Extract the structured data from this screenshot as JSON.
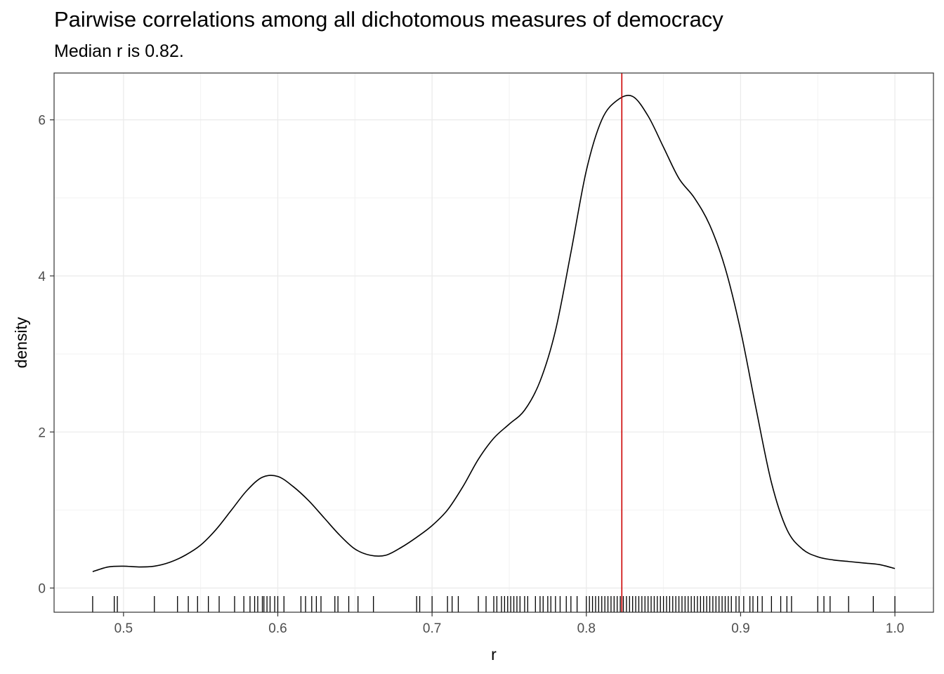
{
  "chart_data": {
    "type": "area",
    "title": "Pairwise correlations among all dichotomous measures of democracy",
    "subtitle": "Median r is 0.82.",
    "xlabel": "r",
    "ylabel": "density",
    "xlim": [
      0.455,
      1.025
    ],
    "ylim": [
      -0.31,
      6.6
    ],
    "x_ticks": [
      0.5,
      0.6,
      0.7,
      0.8,
      0.9,
      1.0
    ],
    "x_tick_labels": [
      "0.5",
      "0.6",
      "0.7",
      "0.8",
      "0.9",
      "1.0"
    ],
    "y_ticks": [
      0,
      2,
      4,
      6
    ],
    "y_tick_labels": [
      "0",
      "2",
      "4",
      "6"
    ],
    "grid": true,
    "legend": "none",
    "median_r": 0.823,
    "median_line_color": "#cc0000",
    "curve_color": "#000000",
    "series": [
      {
        "x": [
          0.48,
          0.49,
          0.5,
          0.51,
          0.52,
          0.53,
          0.54,
          0.55,
          0.56,
          0.57,
          0.58,
          0.59,
          0.6,
          0.61,
          0.62,
          0.63,
          0.64,
          0.65,
          0.66,
          0.67,
          0.68,
          0.69,
          0.7,
          0.71,
          0.72,
          0.73,
          0.74,
          0.75,
          0.76,
          0.77,
          0.78,
          0.79,
          0.8,
          0.81,
          0.82,
          0.83,
          0.84,
          0.85,
          0.86,
          0.87,
          0.88,
          0.89,
          0.9,
          0.91,
          0.92,
          0.93,
          0.94,
          0.95,
          0.96,
          0.97,
          0.98,
          0.99,
          1.0
        ],
        "y": [
          0.21,
          0.27,
          0.28,
          0.27,
          0.28,
          0.33,
          0.42,
          0.55,
          0.75,
          1.0,
          1.25,
          1.42,
          1.43,
          1.3,
          1.12,
          0.9,
          0.68,
          0.5,
          0.42,
          0.42,
          0.52,
          0.65,
          0.8,
          1.0,
          1.3,
          1.65,
          1.92,
          2.1,
          2.28,
          2.65,
          3.3,
          4.3,
          5.35,
          6.0,
          6.25,
          6.3,
          6.05,
          5.65,
          5.25,
          5.0,
          4.65,
          4.1,
          3.3,
          2.3,
          1.35,
          0.75,
          0.5,
          0.4,
          0.36,
          0.34,
          0.32,
          0.3,
          0.25
        ]
      }
    ],
    "rug": [
      0.48,
      0.494,
      0.496,
      0.52,
      0.535,
      0.542,
      0.548,
      0.555,
      0.562,
      0.572,
      0.578,
      0.582,
      0.585,
      0.587,
      0.59,
      0.591,
      0.593,
      0.595,
      0.598,
      0.6,
      0.604,
      0.615,
      0.618,
      0.622,
      0.625,
      0.628,
      0.637,
      0.639,
      0.646,
      0.652,
      0.662,
      0.69,
      0.692,
      0.7,
      0.71,
      0.713,
      0.717,
      0.73,
      0.735,
      0.74,
      0.742,
      0.745,
      0.747,
      0.749,
      0.751,
      0.753,
      0.755,
      0.757,
      0.76,
      0.762,
      0.767,
      0.77,
      0.772,
      0.775,
      0.777,
      0.78,
      0.783,
      0.787,
      0.79,
      0.794,
      0.8,
      0.802,
      0.804,
      0.806,
      0.808,
      0.81,
      0.812,
      0.814,
      0.816,
      0.818,
      0.82,
      0.822,
      0.824,
      0.826,
      0.828,
      0.83,
      0.832,
      0.834,
      0.836,
      0.838,
      0.84,
      0.842,
      0.844,
      0.846,
      0.848,
      0.85,
      0.852,
      0.854,
      0.856,
      0.858,
      0.86,
      0.862,
      0.864,
      0.866,
      0.868,
      0.87,
      0.872,
      0.874,
      0.876,
      0.878,
      0.88,
      0.882,
      0.884,
      0.886,
      0.888,
      0.89,
      0.892,
      0.894,
      0.897,
      0.899,
      0.902,
      0.906,
      0.908,
      0.911,
      0.914,
      0.92,
      0.926,
      0.93,
      0.933,
      0.95,
      0.954,
      0.958,
      0.97,
      0.986,
      1.0
    ]
  }
}
